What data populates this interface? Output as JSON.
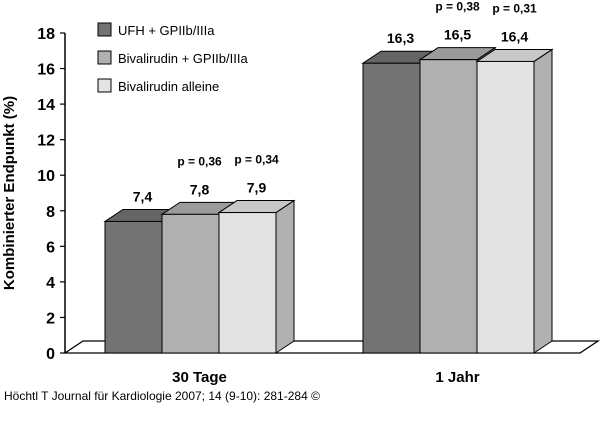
{
  "chart_data": {
    "type": "bar",
    "ylabel": "Kombinierter Endpunkt (%)",
    "ylim": [
      0,
      18
    ],
    "yticks": [
      0,
      2,
      4,
      6,
      8,
      10,
      12,
      14,
      16,
      18
    ],
    "categories": [
      "30 Tage",
      "1 Jahr"
    ],
    "legend_position": "top-left",
    "series": [
      {
        "name": "UFH + GPIIb/IIIa",
        "values": [
          7.4,
          16.3
        ],
        "labels": [
          "7,4",
          "16,3"
        ],
        "color": "#737373"
      },
      {
        "name": "Bivalirudin + GPIIb/IIIa",
        "values": [
          7.8,
          16.5
        ],
        "labels": [
          "7,8",
          "16,5"
        ],
        "color": "#b0b0b0"
      },
      {
        "name": "Bivalirudin alleine",
        "values": [
          7.9,
          16.4
        ],
        "labels": [
          "7,9",
          "16,4"
        ],
        "color": "#e3e3e3"
      }
    ],
    "annotations": [
      {
        "category": 0,
        "series": 1,
        "text": "p = 0,36"
      },
      {
        "category": 0,
        "series": 2,
        "text": "p = 0,34"
      },
      {
        "category": 1,
        "series": 1,
        "text": "p = 0,38"
      },
      {
        "category": 1,
        "series": 2,
        "text": "p = 0,31"
      }
    ]
  },
  "credit": "Höchtl T Journal für Kardiologie 2007; 14 (9-10): 281-284 ©"
}
